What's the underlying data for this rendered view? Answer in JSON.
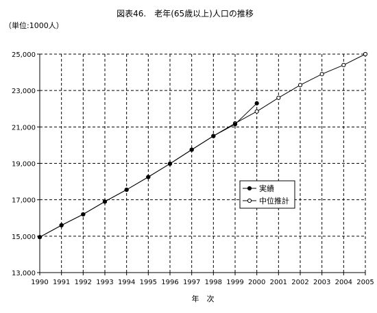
{
  "chart_data": {
    "type": "line",
    "title": "図表46.　老年(65歳以上)人口の推移",
    "unit_label": "（単位:1000人）",
    "xlabel": "年　次",
    "ylabel": "",
    "x": [
      1990,
      1991,
      1992,
      1993,
      1994,
      1995,
      1996,
      1997,
      1998,
      1999,
      2000,
      2001,
      2002,
      2003,
      2004,
      2005
    ],
    "x_tick_labels": [
      "1990",
      "1991",
      "1992",
      "1993",
      "1994",
      "1995",
      "1996",
      "1997",
      "1998",
      "1999",
      "2000",
      "2001",
      "2002",
      "2003",
      "2004",
      "2005"
    ],
    "xlim": [
      1990,
      2005
    ],
    "ylim": [
      13000,
      25000
    ],
    "y_ticks": [
      13000,
      15000,
      17000,
      19000,
      21000,
      23000,
      25000
    ],
    "y_tick_labels": [
      "13,000",
      "15,000",
      "17,000",
      "19,000",
      "21,000",
      "23,000",
      "25,000"
    ],
    "grid": true,
    "grid_style": "dashed",
    "legend_position": "right-middle",
    "series": [
      {
        "name": "実績",
        "marker": "filled-circle",
        "color": "#000000",
        "x": [
          1990,
          1991,
          1992,
          1993,
          1994,
          1995,
          1996,
          1997,
          1998,
          1999,
          2000
        ],
        "values": [
          14950,
          15600,
          16200,
          16900,
          17550,
          18250,
          18980,
          19750,
          20500,
          21150,
          22300
        ]
      },
      {
        "name": "中位推計",
        "marker": "open-circle",
        "color": "#000000",
        "x": [
          1990,
          1991,
          1992,
          1993,
          1994,
          1995,
          1996,
          1997,
          1998,
          1999,
          2000,
          2001,
          2002,
          2003,
          2004,
          2005
        ],
        "values": [
          14950,
          15600,
          16200,
          16900,
          17550,
          18250,
          18980,
          19750,
          20500,
          21200,
          21850,
          22600,
          23300,
          23900,
          24400,
          25000
        ]
      }
    ]
  }
}
